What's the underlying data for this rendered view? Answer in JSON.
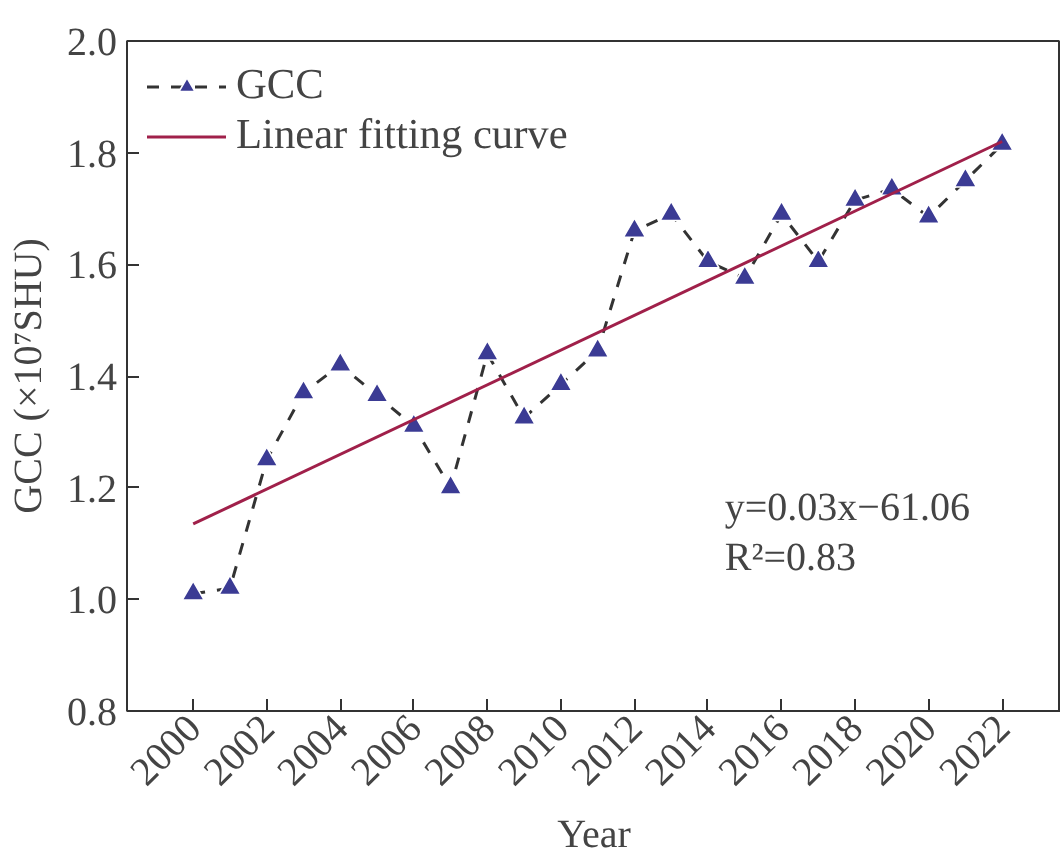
{
  "chart_data": {
    "type": "line",
    "xlabel": "Year",
    "ylabel": "GCC (×10⁷SHU)",
    "xlim": [
      1998.2,
      2023.6
    ],
    "ylim": [
      0.8,
      2.0
    ],
    "xticks": [
      2000,
      2002,
      2004,
      2006,
      2008,
      2010,
      2012,
      2014,
      2016,
      2018,
      2020,
      2022
    ],
    "yticks": [
      {
        "value": 0.8,
        "label": "0.8"
      },
      {
        "value": 1.0,
        "label": "1.0"
      },
      {
        "value": 1.2,
        "label": "1.2"
      },
      {
        "value": 1.4,
        "label": "1.4"
      },
      {
        "value": 1.6,
        "label": "1.6"
      },
      {
        "value": 1.8,
        "label": "1.8"
      },
      {
        "value": 2.0,
        "label": "2.0"
      }
    ],
    "x": [
      2000,
      2001,
      2002,
      2003,
      2004,
      2005,
      2006,
      2007,
      2008,
      2009,
      2010,
      2011,
      2012,
      2013,
      2014,
      2015,
      2016,
      2017,
      2018,
      2019,
      2020,
      2021,
      2022
    ],
    "series": [
      {
        "name": "GCC",
        "color": "#3b3b94",
        "marker": "triangle",
        "line_style": "dashed",
        "values": [
          1.01,
          1.02,
          1.25,
          1.37,
          1.42,
          1.365,
          1.31,
          1.2,
          1.44,
          1.325,
          1.385,
          1.445,
          1.66,
          1.69,
          1.605,
          1.575,
          1.69,
          1.605,
          1.715,
          1.735,
          1.685,
          1.75,
          1.815
        ]
      },
      {
        "name": "Linear fitting curve",
        "color": "#a0204a",
        "marker": "none",
        "line_style": "solid",
        "x": [
          2000,
          2022
        ],
        "values": [
          1.135,
          1.82
        ]
      }
    ],
    "annotations": [
      "y=0.03x−61.06",
      "R²=0.83"
    ],
    "legend": "top left",
    "grid": false
  }
}
